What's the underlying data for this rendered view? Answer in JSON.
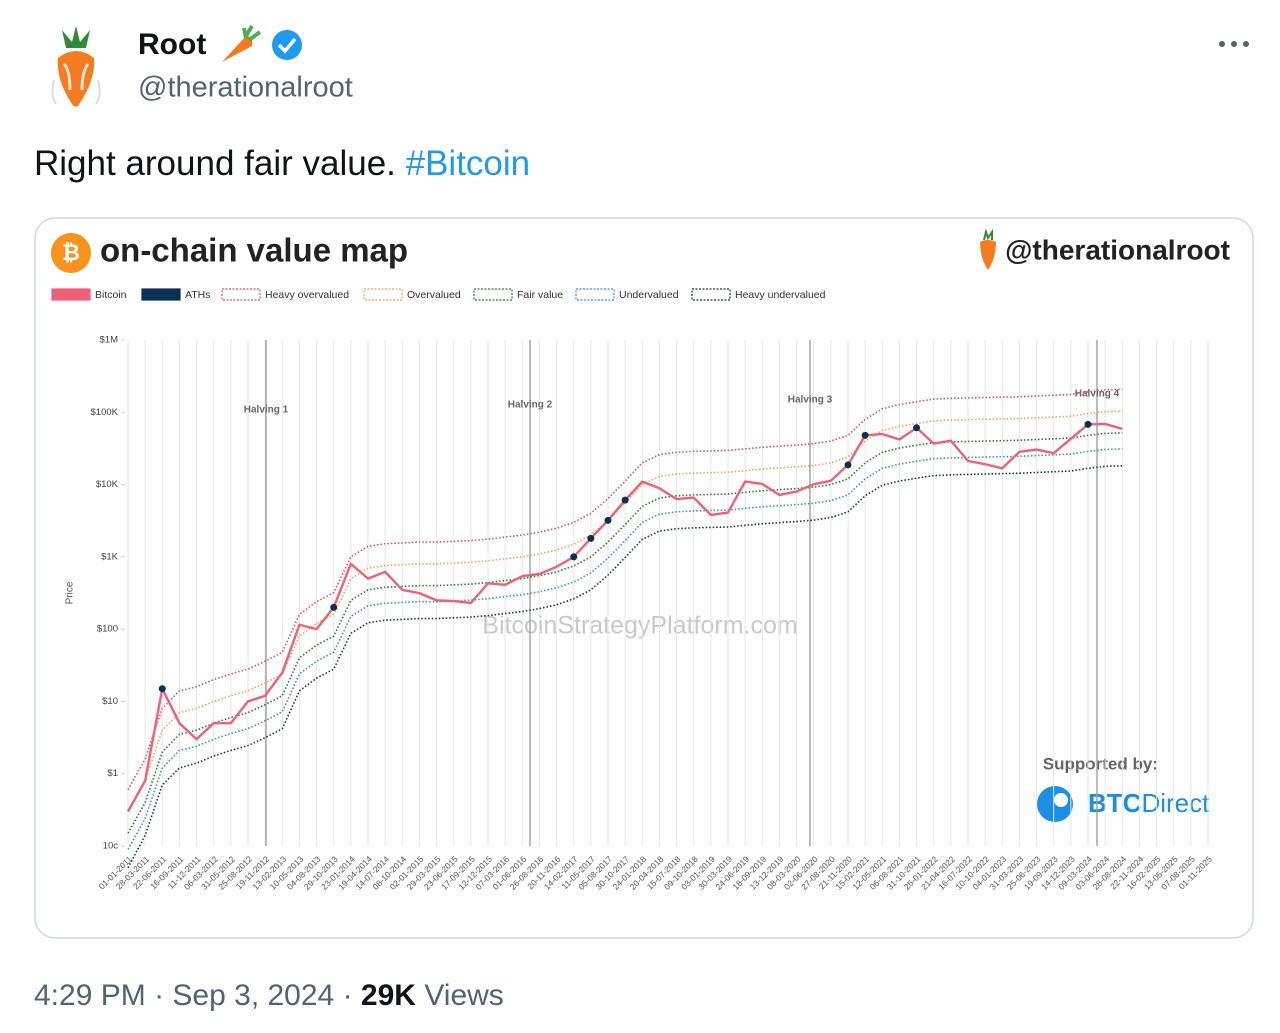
{
  "tweet": {
    "name": "Root",
    "handle": "@therationalroot",
    "text": "Right around fair value. ",
    "hashtag": "#Bitcoin",
    "time": "4:29 PM",
    "separator": "·",
    "date": "Sep 3, 2024",
    "views_count": "29K",
    "views_label": "Views"
  },
  "chart_data": {
    "type": "line",
    "title": "on-chain value map",
    "watermark_handle": "@therationalroot",
    "watermark": "BitcoinStrategyPlatform.com",
    "sponsor_label": "Supported by:",
    "sponsor_bold": "BTC",
    "sponsor_light": "Direct",
    "y_label": "Price",
    "log_scale": true,
    "grid": true,
    "ylim": [
      0.1,
      1000000
    ],
    "yticks": [
      {
        "value": 0.1,
        "label": "10c"
      },
      {
        "value": 1,
        "label": "$1"
      },
      {
        "value": 10,
        "label": "$10"
      },
      {
        "value": 100,
        "label": "$100"
      },
      {
        "value": 1000,
        "label": "$1K"
      },
      {
        "value": 10000,
        "label": "$10K"
      },
      {
        "value": 100000,
        "label": "$100K"
      },
      {
        "value": 1000000,
        "label": "$1M"
      }
    ],
    "annotations": [
      "Halving 1",
      "Halving 2",
      "Halving 3",
      "Halving 4"
    ],
    "categories": [
      "01-01-2011",
      "28-03-2011",
      "22-06-2011",
      "16-09-2011",
      "11-12-2011",
      "06-03-2012",
      "31-05-2012",
      "25-08-2012",
      "19-11-2012",
      "13-02-2013",
      "10-05-2013",
      "04-08-2013",
      "29-10-2013",
      "23-01-2014",
      "19-04-2014",
      "14-07-2014",
      "08-10-2014",
      "02-01-2015",
      "29-03-2015",
      "23-06-2015",
      "17-09-2015",
      "12-12-2015",
      "07-03-2016",
      "01-06-2016",
      "26-08-2016",
      "20-11-2016",
      "14-02-2017",
      "11-05-2017",
      "05-08-2017",
      "30-10-2017",
      "24-01-2018",
      "20-04-2018",
      "15-07-2018",
      "09-10-2018",
      "03-01-2019",
      "30-03-2019",
      "24-06-2019",
      "18-09-2019",
      "13-12-2019",
      "08-03-2020",
      "02-06-2020",
      "27-08-2020",
      "21-11-2020",
      "15-02-2021",
      "12-05-2021",
      "06-08-2021",
      "31-10-2021",
      "25-01-2022",
      "21-04-2022",
      "16-07-2022",
      "10-10-2022",
      "04-01-2023",
      "31-03-2023",
      "25-06-2023",
      "19-09-2023",
      "14-12-2023",
      "09-03-2024",
      "03-06-2024",
      "28-08-2024",
      "22-11-2024",
      "16-02-2025",
      "13-05-2025",
      "07-08-2025",
      "01-11-2025"
    ],
    "series": [
      {
        "name": "Bitcoin",
        "color": "#f06078",
        "line_style": "solid",
        "values": [
          0.3,
          0.8,
          15,
          5,
          3,
          5,
          5,
          10,
          12,
          25,
          115,
          100,
          200,
          800,
          500,
          620,
          350,
          315,
          250,
          245,
          230,
          430,
          410,
          540,
          580,
          730,
          1000,
          1800,
          3200,
          6100,
          11000,
          8900,
          6300,
          6600,
          3800,
          4100,
          11000,
          10200,
          7200,
          8000,
          10100,
          11300,
          18700,
          48000,
          50000,
          42000,
          61000,
          36900,
          40500,
          21200,
          19100,
          16800,
          28400,
          30500,
          27200,
          43000,
          68000,
          69000,
          59000,
          null,
          null,
          null,
          null,
          null
        ]
      },
      {
        "name": "ATHs",
        "color": "#0d2f52",
        "line_style": "point",
        "values": [
          null,
          null,
          15,
          null,
          null,
          null,
          null,
          null,
          null,
          null,
          null,
          null,
          200,
          null,
          null,
          null,
          null,
          null,
          null,
          null,
          null,
          null,
          null,
          null,
          null,
          null,
          1000,
          1800,
          3200,
          6100,
          null,
          null,
          null,
          null,
          null,
          null,
          null,
          null,
          null,
          null,
          null,
          null,
          18700,
          48000,
          null,
          null,
          61000,
          null,
          null,
          null,
          null,
          null,
          null,
          null,
          null,
          null,
          68000,
          null,
          null,
          null,
          null,
          null,
          null,
          null
        ]
      },
      {
        "name": "Heavy overvalued",
        "color": "#e0506e",
        "line_style": "dotted",
        "values": [
          0.6,
          1.6,
          8,
          14,
          16,
          20,
          24,
          28,
          36,
          48,
          160,
          240,
          320,
          1000,
          1400,
          1520,
          1560,
          1600,
          1600,
          1640,
          1680,
          1760,
          1880,
          2000,
          2200,
          2480,
          3000,
          4000,
          6400,
          11200,
          20000,
          26000,
          28000,
          28800,
          29200,
          29600,
          31200,
          32800,
          34000,
          35200,
          36800,
          40000,
          48000,
          80000,
          112000,
          128000,
          140000,
          152000,
          156000,
          158000,
          160000,
          162000,
          164000,
          168000,
          172000,
          176000,
          192000,
          204000,
          208000,
          null,
          null,
          null,
          null,
          null
        ]
      },
      {
        "name": "Overvalued",
        "color": "#f2a45a",
        "line_style": "dotted",
        "values": [
          0.3,
          0.8,
          4,
          7,
          8,
          10,
          12,
          14,
          18,
          24,
          80,
          120,
          160,
          500,
          700,
          760,
          780,
          800,
          800,
          820,
          840,
          880,
          940,
          1000,
          1100,
          1240,
          1500,
          2000,
          3200,
          5600,
          10000,
          13000,
          14000,
          14400,
          14600,
          14800,
          15600,
          16400,
          17000,
          17600,
          18400,
          20000,
          24000,
          40000,
          56000,
          64000,
          70000,
          76000,
          78000,
          79000,
          80000,
          81000,
          82000,
          84000,
          86000,
          88000,
          96000,
          102000,
          104000,
          null,
          null,
          null,
          null,
          null
        ]
      },
      {
        "name": "Fair value",
        "color": "#2e7d32",
        "line_style": "dotted",
        "values": [
          0.15,
          0.4,
          2,
          3.5,
          4,
          5,
          6,
          7,
          9,
          12,
          40,
          60,
          80,
          250,
          350,
          380,
          390,
          400,
          400,
          410,
          420,
          440,
          470,
          500,
          550,
          620,
          750,
          1000,
          1600,
          2800,
          5000,
          6500,
          7000,
          7200,
          7300,
          7400,
          7800,
          8200,
          8500,
          8800,
          9200,
          10000,
          12000,
          20000,
          28000,
          32000,
          35000,
          38000,
          39000,
          39500,
          40000,
          40500,
          41000,
          42000,
          43000,
          44000,
          48000,
          51000,
          52000,
          null,
          null,
          null,
          null,
          null
        ]
      },
      {
        "name": "Undervalued",
        "color": "#3d8fd6",
        "line_style": "dotted",
        "values": [
          0.09,
          0.24,
          1.2,
          2.1,
          2.4,
          3,
          3.6,
          4.2,
          5.4,
          7.2,
          24,
          36,
          48,
          150,
          210,
          228,
          234,
          240,
          240,
          246,
          252,
          264,
          282,
          300,
          330,
          372,
          450,
          600,
          960,
          1680,
          3000,
          3900,
          4200,
          4320,
          4380,
          4440,
          4680,
          4920,
          5100,
          5280,
          5520,
          6000,
          7200,
          12000,
          16800,
          19200,
          21000,
          22800,
          23400,
          23700,
          24000,
          24300,
          24600,
          25200,
          25800,
          26400,
          28800,
          30600,
          31200,
          null,
          null,
          null,
          null,
          null
        ]
      },
      {
        "name": "Heavy undervalued",
        "color": "#1a3563",
        "line_style": "dotted",
        "values": [
          0.05,
          0.14,
          0.7,
          1.2,
          1.4,
          1.75,
          2.1,
          2.45,
          3.15,
          4.2,
          14,
          21,
          28,
          87.5,
          122.5,
          133,
          136.5,
          140,
          140,
          143.5,
          147,
          154,
          164.5,
          175,
          192.5,
          217,
          262.5,
          350,
          560,
          980,
          1750,
          2275,
          2450,
          2520,
          2555,
          2590,
          2730,
          2870,
          2975,
          3080,
          3220,
          3500,
          4200,
          7000,
          9800,
          11200,
          12250,
          13300,
          13650,
          13825,
          14000,
          14175,
          14350,
          14700,
          15050,
          15400,
          16800,
          17850,
          18200,
          null,
          null,
          null,
          null,
          null
        ]
      }
    ]
  }
}
